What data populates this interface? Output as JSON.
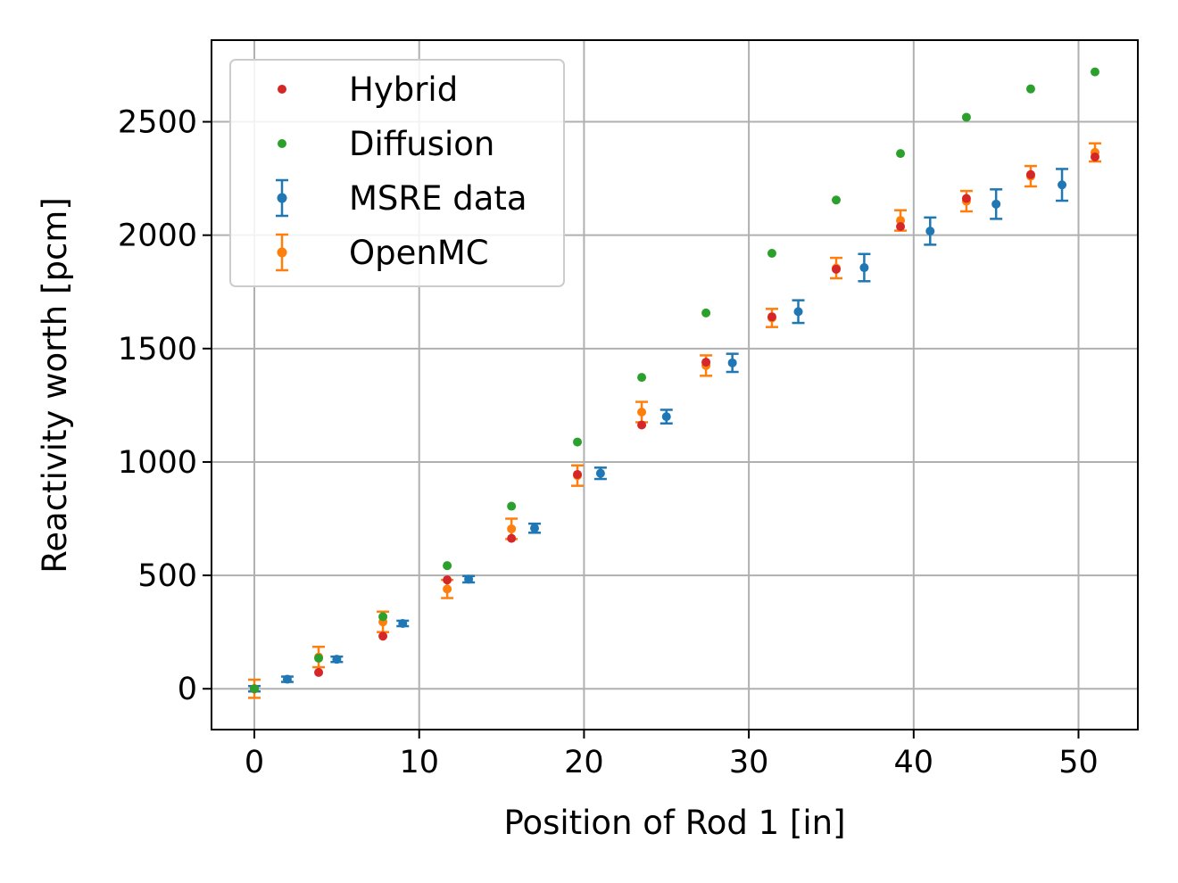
{
  "chart_data": {
    "type": "scatter",
    "title": "",
    "xlabel": "Position of Rod 1 [in]",
    "ylabel": "Reactivity worth [pcm]",
    "xlim": [
      -2.6,
      53.6
    ],
    "ylim": [
      -180,
      2860
    ],
    "xticks": [
      0,
      10,
      20,
      30,
      40,
      50
    ],
    "yticks": [
      0,
      500,
      1000,
      1500,
      2000,
      2500
    ],
    "grid": true,
    "legend_position": "top-left",
    "series": [
      {
        "name": "Hybrid",
        "marker": "dot",
        "color": "#d62728",
        "x": [
          0,
          3.9,
          7.8,
          11.7,
          15.6,
          19.6,
          23.5,
          27.4,
          31.4,
          35.3,
          39.2,
          43.2,
          47.1,
          51.0
        ],
        "y": [
          0,
          72,
          232,
          480,
          663,
          945,
          1163,
          1440,
          1640,
          1850,
          2038,
          2162,
          2267,
          2345
        ]
      },
      {
        "name": "Diffusion",
        "marker": "dot",
        "color": "#2ca02c",
        "x": [
          0,
          3.9,
          7.8,
          11.7,
          15.6,
          19.6,
          23.5,
          27.4,
          31.4,
          35.3,
          39.2,
          43.2,
          47.1,
          51.0
        ],
        "y": [
          0,
          135,
          318,
          543,
          805,
          1088,
          1373,
          1657,
          1920,
          2155,
          2360,
          2520,
          2645,
          2720
        ]
      },
      {
        "name": "MSRE data",
        "marker": "errorbar",
        "color": "#1f77b4",
        "x": [
          0,
          2,
          5,
          9,
          13,
          17,
          21,
          25,
          29,
          33,
          37,
          41,
          45,
          49
        ],
        "y": [
          0,
          42,
          130,
          288,
          483,
          708,
          950,
          1200,
          1437,
          1663,
          1857,
          2018,
          2137,
          2222
        ],
        "err": [
          5,
          8,
          10,
          12,
          14,
          20,
          25,
          30,
          40,
          50,
          60,
          60,
          65,
          70
        ]
      },
      {
        "name": "OpenMC",
        "marker": "errorbar",
        "color": "#ff7f0e",
        "x": [
          0,
          3.9,
          7.8,
          11.7,
          15.6,
          19.6,
          23.5,
          27.4,
          31.4,
          35.3,
          39.2,
          43.2,
          47.1,
          51.0
        ],
        "y": [
          0,
          140,
          295,
          440,
          705,
          940,
          1220,
          1425,
          1635,
          1855,
          2065,
          2150,
          2260,
          2365
        ],
        "err": [
          40,
          45,
          45,
          40,
          45,
          45,
          45,
          45,
          40,
          45,
          45,
          45,
          45,
          40
        ]
      }
    ]
  }
}
